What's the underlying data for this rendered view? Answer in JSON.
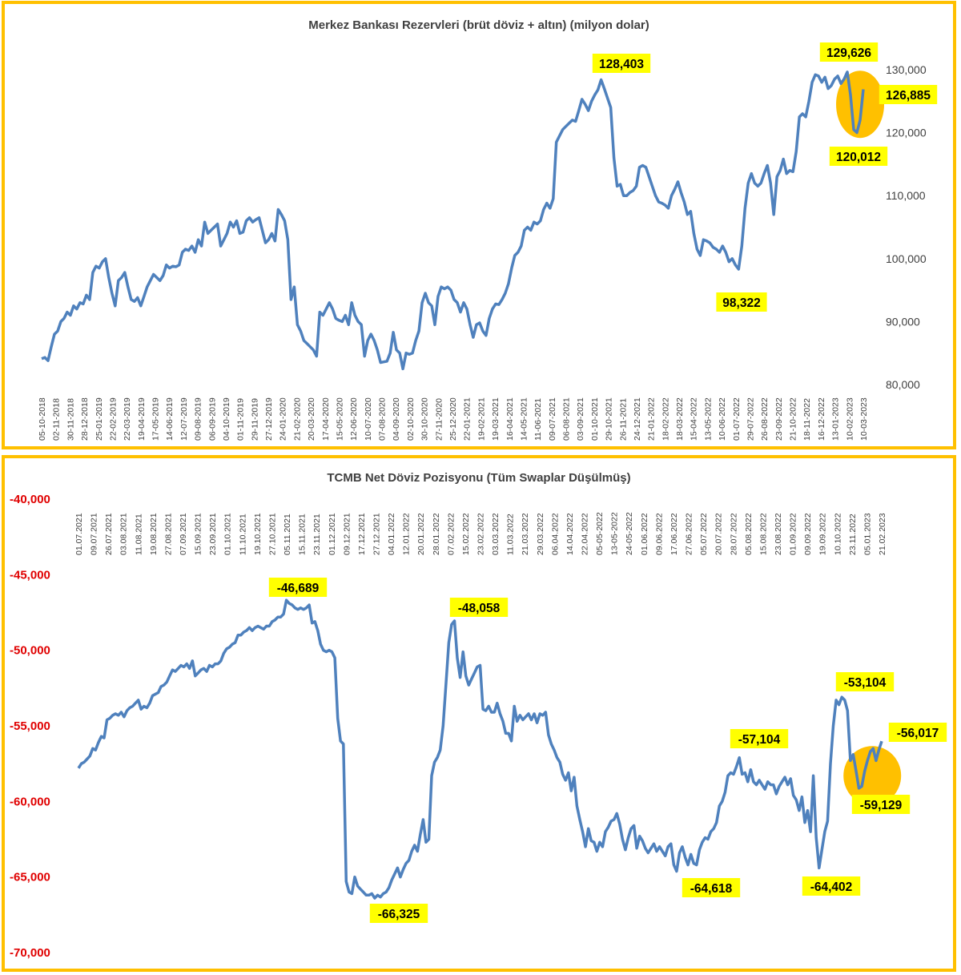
{
  "chart_data": [
    {
      "type": "line",
      "title": "Merkez Bankası Rezervleri (brüt döviz + altın) (milyon dolar)",
      "xlabel": "",
      "ylabel": "",
      "ylim": [
        80000,
        130000
      ],
      "yticks": [
        "80,000",
        "90,000",
        "100,000",
        "110,000",
        "120,000",
        "130,000"
      ],
      "y_axis_side": "right",
      "grid": false,
      "line_color": "#4F81BD",
      "x_tick_labels": [
        "05-10-2018",
        "02-11-2018",
        "30-11-2018",
        "28-12-2018",
        "25-01-2019",
        "22-02-2019",
        "22-03-2019",
        "19-04-2019",
        "17-05-2019",
        "14-06-2019",
        "12-07-2019",
        "09-08-2019",
        "06-09-2019",
        "04-10-2019",
        "01-11-2019",
        "29-11-2019",
        "27-12-2019",
        "24-01-2020",
        "21-02-2020",
        "20-03-2020",
        "17-04-2020",
        "15-05-2020",
        "12-06-2020",
        "10-07-2020",
        "07-08-2020",
        "04-09-2020",
        "02-10-2020",
        "30-10-2020",
        "27-11-2020",
        "25-12-2020",
        "22-01-2021",
        "19-02-2021",
        "19-03-2021",
        "16-04-2021",
        "14-05-2021",
        "11-06-2021",
        "09-07-2021",
        "06-08-2021",
        "03-09-2021",
        "01-10-2021",
        "29-10-2021",
        "26-11-2021",
        "24-12-2021",
        "21-01-2022",
        "18-02-2022",
        "18-03-2022",
        "15-04-2022",
        "13-05-2022",
        "10-06-2022",
        "01-07-2022",
        "29-07-2022",
        "26-08-2022",
        "23-09-2022",
        "21-10-2022",
        "18-11-2022",
        "16-12-2022",
        "13-01-2023",
        "10-02-2023",
        "10-03-2023"
      ],
      "series": [
        {
          "values": [
            84100,
            84300,
            83800,
            86000,
            88000,
            88500,
            90000,
            90500,
            91500,
            91000,
            92500,
            92000,
            93000,
            92800,
            94200,
            93500,
            97800,
            98800,
            98500,
            99500,
            100000,
            97000,
            94500,
            92500,
            96500,
            97000,
            97800,
            95500,
            93500,
            93200,
            93800,
            92500,
            94000,
            95500,
            96500,
            97500,
            97000,
            96500,
            97300,
            99000,
            98500,
            98800,
            98700,
            99000,
            101000,
            101500,
            101300,
            102000,
            101000,
            103000,
            102000,
            105800,
            104000,
            104500,
            105000,
            105500,
            102000,
            103000,
            104000,
            105800,
            105000,
            106000,
            104000,
            104200,
            106000,
            106500,
            105800,
            106200,
            106500,
            104500,
            102500,
            103000,
            104000,
            102800,
            107800,
            107000,
            106000,
            103000,
            93500,
            95500,
            89500,
            88500,
            87000,
            86500,
            86000,
            85500,
            84500,
            91500,
            91000,
            92000,
            93000,
            92000,
            90500,
            90200,
            90000,
            91000,
            89500,
            93000,
            91000,
            90000,
            89500,
            84500,
            87000,
            88000,
            87000,
            85500,
            83500,
            83600,
            83700,
            85000,
            88300,
            85500,
            85000,
            82500,
            85000,
            84800,
            85000,
            87000,
            88500,
            93000,
            94500,
            93000,
            92500,
            89500,
            94000,
            95500,
            95200,
            95500,
            95000,
            93500,
            93000,
            91500,
            93000,
            92000,
            89500,
            87500,
            89500,
            89800,
            88500,
            87800,
            90500,
            92000,
            92800,
            92700,
            93500,
            94500,
            96000,
            98500,
            100500,
            101000,
            102000,
            104500,
            105000,
            104500,
            105800,
            105500,
            106000,
            107800,
            108800,
            108000,
            109500,
            118500,
            119500,
            120500,
            121000,
            121500,
            122000,
            121800,
            123500,
            125300,
            124500,
            123500,
            125000,
            126000,
            126800,
            128403,
            127000,
            125500,
            124000,
            116000,
            111500,
            111800,
            110000,
            110000,
            110500,
            110800,
            111500,
            114500,
            114800,
            114500,
            113000,
            111500,
            110000,
            109000,
            108800,
            108500,
            108000,
            110000,
            111000,
            112200,
            110500,
            109000,
            107000,
            107500,
            104000,
            101500,
            100500,
            103000,
            102800,
            102500,
            101800,
            101500,
            101000,
            102000,
            101000,
            99500,
            100000,
            99000,
            98322,
            102000,
            108000,
            112000,
            113500,
            112000,
            111500,
            112000,
            113500,
            114800,
            112000,
            107000,
            113000,
            114000,
            115800,
            113500,
            114000,
            113800,
            117000,
            122500,
            123000,
            122500,
            125000,
            128000,
            129200,
            129000,
            128000,
            128800,
            127000,
            127500,
            128500,
            129000,
            127800,
            128500,
            129626,
            126000,
            120500,
            120012,
            122000,
            126885
          ]
        }
      ],
      "annotations": [
        {
          "label": "128,403",
          "value": 128403
        },
        {
          "label": "129,626",
          "value": 129626
        },
        {
          "label": "126,885",
          "value": 126885
        },
        {
          "label": "120,012",
          "value": 120012
        },
        {
          "label": "98,322",
          "value": 98322
        }
      ]
    },
    {
      "type": "line",
      "title": "TCMB Net Döviz Pozisyonu (Tüm Swaplar Düşülmüş)",
      "xlabel": "",
      "ylabel": "",
      "ylim": [
        -70000,
        -40000
      ],
      "yticks": [
        "-40,000",
        "-45,000",
        "-50,000",
        "-55,000",
        "-60,000",
        "-65,000",
        "-70,000"
      ],
      "y_axis_side": "left",
      "x_axis_position": "top",
      "grid": false,
      "line_color": "#4F81BD",
      "ytick_color": "#E00000",
      "x_tick_labels": [
        "01.07.2021",
        "09.07.2021",
        "26.07.2021",
        "03.08.2021",
        "11.08.2021",
        "19.08.2021",
        "27.08.2021",
        "07.09.2021",
        "15.09.2021",
        "23.09.2021",
        "01.10.2021",
        "11.10.2021",
        "19.10.2021",
        "27.10.2021",
        "05.11.2021",
        "15.11.2021",
        "23.11.2021",
        "01.12.2021",
        "09.12.2021",
        "17.12.2021",
        "27.12.2021",
        "04.01.2022",
        "12.01.2022",
        "20.01.2022",
        "28.01.2022",
        "07.02.2022",
        "15.02.2022",
        "23.02.2022",
        "03.03.2022",
        "11.03.2022",
        "21.03.2022",
        "29.03.2022",
        "06.04.2022",
        "14.04.2022",
        "22.04.2022",
        "05-05-2022",
        "13-05-2022",
        "24-05-2022",
        "01.06.2022",
        "09.06.2022",
        "17.06.2022",
        "27.06.2022",
        "05.07.2022",
        "20.07.2022",
        "28.07.2022",
        "05.08.2022",
        "15.08.2022",
        "23.08.2022",
        "01.09.2022",
        "09.09.2022",
        "19.09.2022",
        "10.10.2022",
        "23.11.2022",
        "05.01.2023",
        "21.02.2023"
      ],
      "series": [
        {
          "values": [
            -57800,
            -57500,
            -57400,
            -57200,
            -57000,
            -56500,
            -56600,
            -56100,
            -55700,
            -55800,
            -54600,
            -54500,
            -54300,
            -54200,
            -54300,
            -54100,
            -54400,
            -54000,
            -53800,
            -53700,
            -53500,
            -53300,
            -53900,
            -53700,
            -53800,
            -53500,
            -53000,
            -52900,
            -52800,
            -52400,
            -52300,
            -52100,
            -51700,
            -51300,
            -51400,
            -51200,
            -51000,
            -51100,
            -50900,
            -51200,
            -50700,
            -51700,
            -51500,
            -51300,
            -51200,
            -51400,
            -51000,
            -51100,
            -50900,
            -50900,
            -50700,
            -50200,
            -49900,
            -49800,
            -49600,
            -49500,
            -49000,
            -49000,
            -48800,
            -48700,
            -48500,
            -48700,
            -48500,
            -48400,
            -48500,
            -48600,
            -48400,
            -48400,
            -48100,
            -48000,
            -47800,
            -47800,
            -47600,
            -46689,
            -46900,
            -47000,
            -47200,
            -47300,
            -47200,
            -47300,
            -47200,
            -47000,
            -48200,
            -48100,
            -48700,
            -49600,
            -50000,
            -50100,
            -50000,
            -50100,
            -50500,
            -54500,
            -56000,
            -56200,
            -65300,
            -66000,
            -66100,
            -65000,
            -65600,
            -65800,
            -66000,
            -66200,
            -66200,
            -66100,
            -66400,
            -66200,
            -66325,
            -66100,
            -66000,
            -65700,
            -65200,
            -64800,
            -64400,
            -65000,
            -64500,
            -64100,
            -63900,
            -63300,
            -62900,
            -63300,
            -62200,
            -61200,
            -62700,
            -62500,
            -58300,
            -57400,
            -57100,
            -56600,
            -55000,
            -52300,
            -49500,
            -48300,
            -48058,
            -50500,
            -51800,
            -50100,
            -51700,
            -52300,
            -51900,
            -51500,
            -51100,
            -51000,
            -53900,
            -54000,
            -53700,
            -54100,
            -54100,
            -53500,
            -54200,
            -54700,
            -55500,
            -55500,
            -56000,
            -53700,
            -54700,
            -54300,
            -54600,
            -54400,
            -54200,
            -54600,
            -54200,
            -54800,
            -54200,
            -54300,
            -54100,
            -55600,
            -56200,
            -56600,
            -57100,
            -57400,
            -58200,
            -58600,
            -58100,
            -59300,
            -58400,
            -60300,
            -61200,
            -62000,
            -63000,
            -61800,
            -62600,
            -62700,
            -63300,
            -62700,
            -63000,
            -62000,
            -61700,
            -61300,
            -61200,
            -60800,
            -61500,
            -62500,
            -63200,
            -62400,
            -61800,
            -61600,
            -63100,
            -62300,
            -62600,
            -63100,
            -63400,
            -63100,
            -62800,
            -63300,
            -63000,
            -63300,
            -63600,
            -63000,
            -62800,
            -64200,
            -64618,
            -63400,
            -63000,
            -63700,
            -64200,
            -63500,
            -64100,
            -64200,
            -63200,
            -62700,
            -62400,
            -62500,
            -62000,
            -61800,
            -61400,
            -60300,
            -60000,
            -59400,
            -58300,
            -58100,
            -58200,
            -57700,
            -57104,
            -58200,
            -58100,
            -58700,
            -57900,
            -58700,
            -58900,
            -58600,
            -58900,
            -59200,
            -58700,
            -58900,
            -58900,
            -59500,
            -59000,
            -58700,
            -58400,
            -58900,
            -58500,
            -59600,
            -59900,
            -60600,
            -59700,
            -61400,
            -60600,
            -62000,
            -58300,
            -62400,
            -64402,
            -63200,
            -62000,
            -61300,
            -57500,
            -55000,
            -53300,
            -53600,
            -53104,
            -53300,
            -54000,
            -57300,
            -56900,
            -58000,
            -59129,
            -59000,
            -58000,
            -57300,
            -56700,
            -56500,
            -57300,
            -56600,
            -56017
          ]
        }
      ],
      "annotations": [
        {
          "label": "-46,689",
          "value": -46689
        },
        {
          "label": "-48,058",
          "value": -48058
        },
        {
          "label": "-66,325",
          "value": -66325
        },
        {
          "label": "-64,618",
          "value": -64618
        },
        {
          "label": "-57,104",
          "value": -57104
        },
        {
          "label": "-64,402",
          "value": -64402
        },
        {
          "label": "-53,104",
          "value": -53104
        },
        {
          "label": "-56,017",
          "value": -56017
        },
        {
          "label": "-59,129",
          "value": -59129
        }
      ]
    }
  ]
}
